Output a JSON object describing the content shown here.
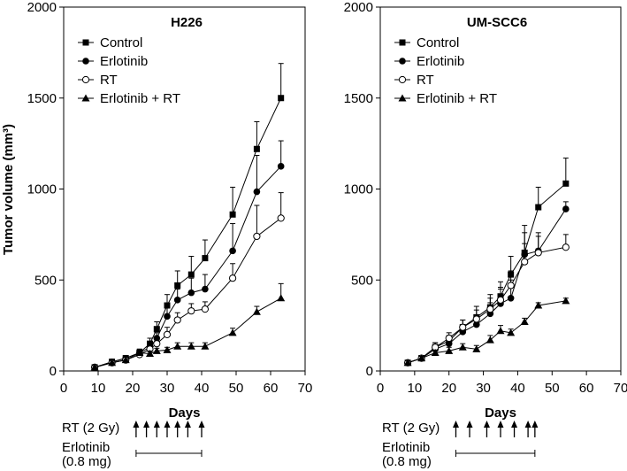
{
  "chart_data": [
    {
      "type": "line",
      "title": "H226",
      "xlabel": "Days",
      "ylabel": "Tumor volume (mm³)",
      "xlim": [
        0,
        70
      ],
      "ylim": [
        0,
        2000
      ],
      "xticks": [
        "0",
        "10",
        "20",
        "30",
        "40",
        "50",
        "60",
        "70"
      ],
      "yticks": [
        "0",
        "500",
        "1000",
        "1500",
        "2000"
      ],
      "x": [
        9,
        14,
        18,
        22,
        25,
        27,
        30,
        33,
        37,
        41,
        49,
        56,
        63
      ],
      "series": [
        {
          "name": "Control",
          "marker": "square",
          "values": [
            20,
            50,
            70,
            100,
            150,
            230,
            360,
            470,
            530,
            620,
            860,
            1220,
            1500
          ],
          "err": [
            10,
            15,
            15,
            20,
            30,
            40,
            60,
            80,
            100,
            100,
            150,
            150,
            190
          ]
        },
        {
          "name": "Erlotinib",
          "marker": "circle-filled",
          "values": [
            20,
            50,
            70,
            100,
            130,
            180,
            300,
            390,
            430,
            450,
            660,
            985,
            1125
          ],
          "err": [
            10,
            15,
            15,
            20,
            25,
            30,
            50,
            60,
            80,
            80,
            150,
            200,
            140
          ]
        },
        {
          "name": "RT",
          "marker": "circle-open",
          "values": [
            20,
            45,
            60,
            90,
            120,
            150,
            200,
            280,
            330,
            340,
            510,
            740,
            840
          ],
          "err": [
            10,
            10,
            15,
            20,
            25,
            30,
            40,
            40,
            40,
            40,
            80,
            170,
            140
          ]
        },
        {
          "name": "Erlotinib + RT",
          "marker": "triangle",
          "values": [
            20,
            45,
            60,
            100,
            95,
            110,
            115,
            135,
            135,
            135,
            210,
            325,
            400
          ],
          "err": [
            10,
            10,
            15,
            15,
            15,
            15,
            15,
            20,
            20,
            20,
            25,
            30,
            80
          ]
        }
      ],
      "schedule": {
        "rt_label": "RT (2 Gy)",
        "rt_days": [
          21,
          24,
          27,
          30,
          33,
          36,
          40
        ],
        "erlotinib_label": "Erlotinib",
        "erlotinib_dose": "(0.8 mg)",
        "erlotinib_range": [
          21,
          40
        ]
      }
    },
    {
      "type": "line",
      "title": "UM-SCC6",
      "xlabel": "Days",
      "ylabel": "",
      "xlim": [
        0,
        70
      ],
      "ylim": [
        0,
        2000
      ],
      "xticks": [
        "0",
        "10",
        "20",
        "30",
        "40",
        "50",
        "60",
        "70"
      ],
      "yticks": [
        "0",
        "500",
        "1000",
        "1500",
        "2000"
      ],
      "x": [
        8,
        12,
        16,
        20,
        24,
        28,
        32,
        35,
        38,
        42,
        46,
        54
      ],
      "series": [
        {
          "name": "Control",
          "marker": "square",
          "values": [
            45,
            70,
            130,
            165,
            240,
            295,
            350,
            410,
            530,
            650,
            900,
            1030
          ],
          "err": [
            10,
            15,
            25,
            30,
            40,
            60,
            70,
            80,
            100,
            150,
            110,
            140
          ]
        },
        {
          "name": "Erlotinib",
          "marker": "circle-filled",
          "values": [
            45,
            70,
            120,
            150,
            215,
            255,
            315,
            370,
            400,
            640,
            660,
            890
          ],
          "err": [
            10,
            15,
            25,
            30,
            40,
            50,
            60,
            80,
            100,
            120,
            100,
            40
          ]
        },
        {
          "name": "RT",
          "marker": "circle-open",
          "values": [
            45,
            70,
            130,
            180,
            240,
            285,
            340,
            390,
            470,
            600,
            650,
            680
          ],
          "err": [
            10,
            15,
            25,
            30,
            40,
            50,
            60,
            70,
            80,
            100,
            90,
            70
          ]
        },
        {
          "name": "Erlotinib + RT",
          "marker": "triangle",
          "values": [
            45,
            70,
            100,
            110,
            130,
            120,
            170,
            220,
            210,
            270,
            360,
            385
          ],
          "err": [
            10,
            10,
            15,
            20,
            20,
            20,
            25,
            30,
            20,
            20,
            15,
            15
          ]
        }
      ],
      "schedule": {
        "rt_label": "RT (2 Gy)",
        "rt_days": [
          22,
          26,
          31,
          35,
          39,
          43,
          45
        ],
        "erlotinib_label": "Erlotinib",
        "erlotinib_dose": "(0.8 mg)",
        "erlotinib_range": [
          22,
          45
        ]
      }
    }
  ]
}
